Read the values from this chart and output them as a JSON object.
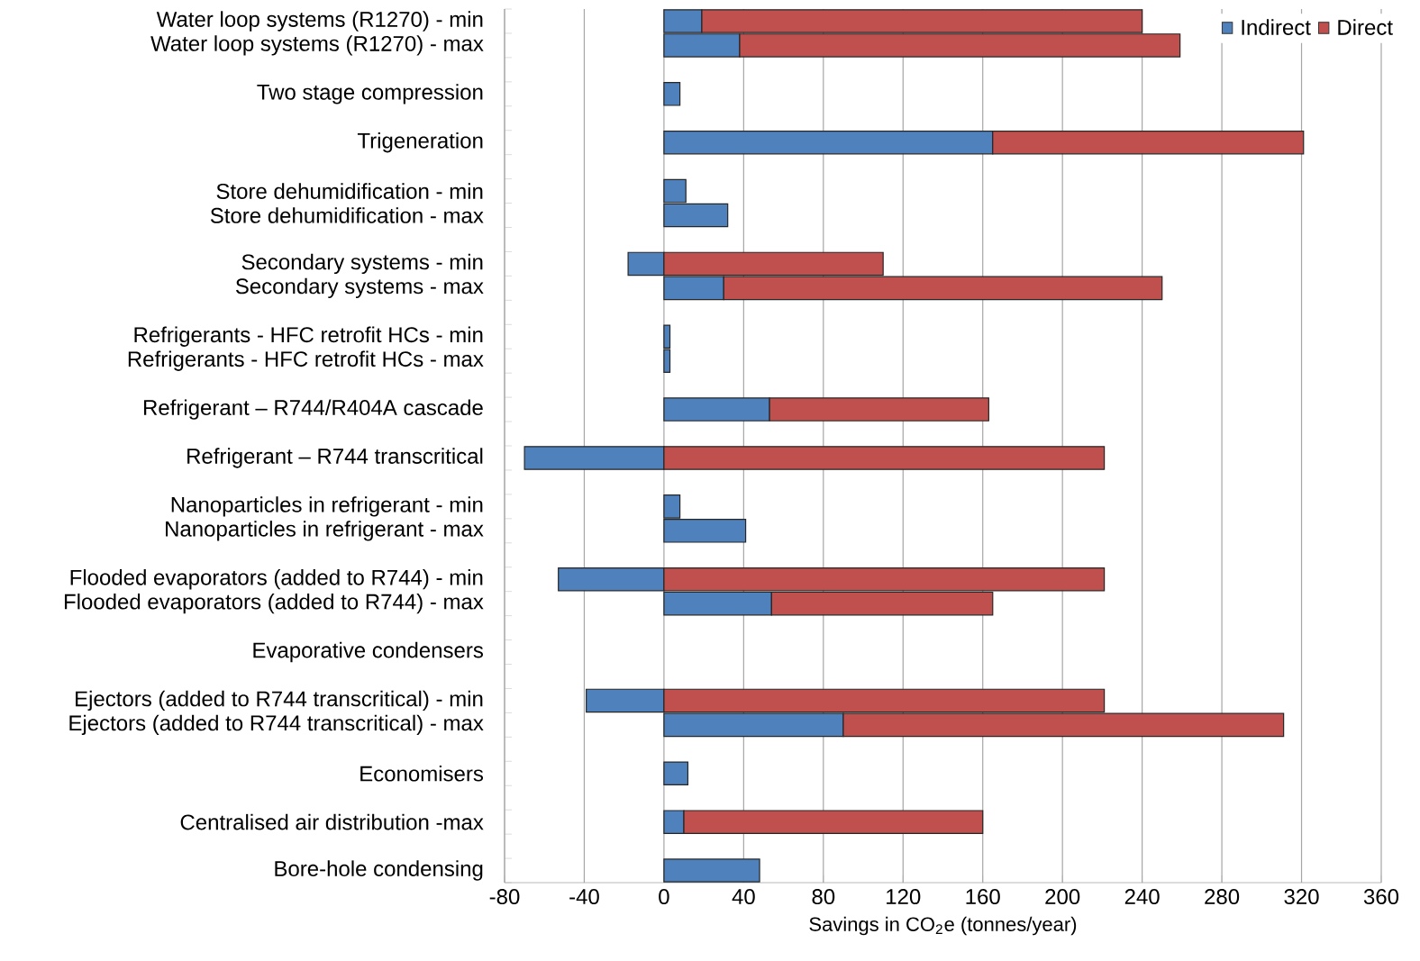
{
  "chart_data": {
    "type": "bar",
    "orientation": "horizontal",
    "stacked": true,
    "xlabel": "Savings in CO$_{2}$e (tonnes/year)",
    "categories": [
      "Water loop systems (R1270) - min",
      "Water loop systems (R1270) - max",
      null,
      "Two stage compression",
      null,
      "Trigeneration",
      null,
      "Store dehumidification - min",
      "Store dehumidification - max",
      null,
      "Secondary systems - min",
      "Secondary systems - max",
      null,
      "Refrigerants - HFC retrofit HCs - min",
      "Refrigerants - HFC retrofit HCs - max",
      null,
      "Refrigerant – R744/R404A cascade",
      null,
      "Refrigerant – R744 transcritical",
      null,
      "Nanoparticles in refrigerant - min",
      "Nanoparticles in refrigerant - max",
      null,
      "Flooded evaporators (added to R744) - min",
      "Flooded evaporators (added to R744) - max",
      null,
      "Evaporative condensers",
      null,
      "Ejectors (added to R744 transcritical) - min",
      "Ejectors (added to R744 transcritical) - max",
      null,
      "Economisers",
      null,
      "Centralised air distribution -max",
      null,
      "Bore-hole condensing"
    ],
    "series": [
      {
        "name": "Indirect",
        "color": "#4f81bd",
        "values": [
          19,
          38,
          null,
          8,
          null,
          165,
          null,
          11,
          32,
          null,
          -18,
          30,
          null,
          3,
          3,
          null,
          53,
          null,
          -70,
          null,
          8,
          41,
          null,
          -53,
          54,
          null,
          null,
          null,
          -39,
          90,
          null,
          12,
          null,
          10,
          null,
          48
        ]
      },
      {
        "name": "Direct",
        "color": "#c0504d",
        "values": [
          221,
          221,
          null,
          null,
          null,
          156,
          null,
          null,
          null,
          null,
          110,
          220,
          null,
          null,
          null,
          null,
          110,
          null,
          221,
          null,
          null,
          null,
          null,
          221,
          111,
          null,
          null,
          null,
          221,
          221,
          null,
          null,
          null,
          150,
          null,
          null
        ]
      }
    ],
    "xlim": [
      -80,
      360
    ],
    "xticks": [
      -80,
      -40,
      0,
      40,
      80,
      120,
      160,
      200,
      240,
      280,
      320,
      360
    ],
    "grid": "x",
    "legend": "top right"
  }
}
